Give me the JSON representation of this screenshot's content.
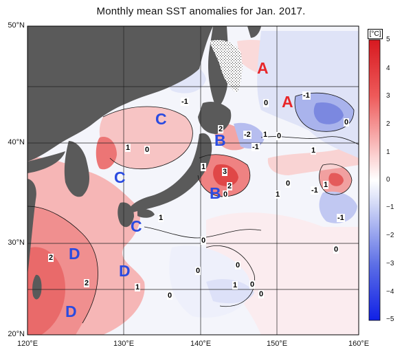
{
  "title": "Monthly mean SST anomalies for Jan. 2017.",
  "lat_labels": [
    "50°N",
    "40°N",
    "30°N",
    "20°N"
  ],
  "lon_labels": [
    "120°E",
    "130°E",
    "140°E",
    "150°E",
    "160°E"
  ],
  "colorbar": {
    "unit": "[°C]",
    "ticks": [
      "5",
      "4",
      "3",
      "2",
      "1",
      "0",
      "−1",
      "−2",
      "−3",
      "−4",
      "−5"
    ],
    "warm_color": "#e8272a",
    "cold_color": "#2333d8"
  },
  "region_labels": [
    {
      "text": "A",
      "color": "#e8272a"
    },
    {
      "text": "A",
      "color": "#e8272a"
    },
    {
      "text": "B",
      "color": "#2a4be0"
    },
    {
      "text": "B",
      "color": "#2a4be0"
    },
    {
      "text": "C",
      "color": "#2a4be0"
    },
    {
      "text": "C",
      "color": "#2a4be0"
    },
    {
      "text": "C",
      "color": "#2a4be0"
    },
    {
      "text": "D",
      "color": "#2a4be0"
    },
    {
      "text": "D",
      "color": "#2a4be0"
    },
    {
      "text": "D",
      "color": "#2a4be0"
    }
  ],
  "contour_labels": [
    "-1",
    "0",
    "-1",
    "0",
    "2",
    "-2",
    "1",
    "0",
    "-1",
    "1",
    "0",
    "1",
    "1",
    "3",
    "2",
    "0",
    "0",
    "1",
    "-1",
    "1",
    "-1",
    "1",
    "0",
    "0",
    "0",
    "0",
    "1",
    "0",
    "0",
    "2",
    "2",
    "1",
    "0"
  ]
}
